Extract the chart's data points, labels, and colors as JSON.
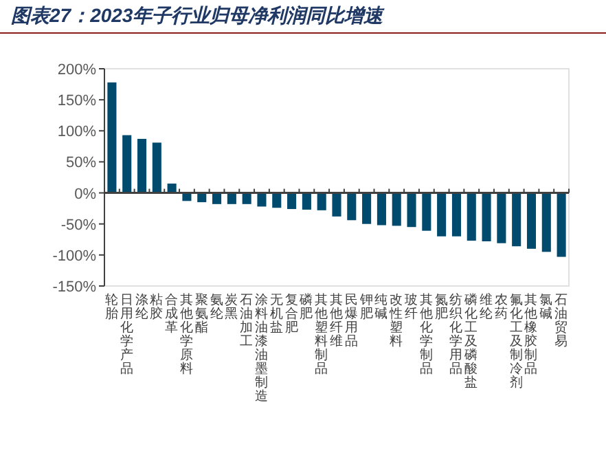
{
  "chart_data": {
    "type": "bar",
    "title": "图表27：2023年子行业归母净利润同比增速",
    "categories": [
      "轮胎",
      "日用化学产品",
      "涤纶",
      "粘胶",
      "合成革",
      "其他化学原料",
      "聚氨酯",
      "氨纶",
      "炭黑",
      "石油加工",
      "涂料油漆油墨制造",
      "无机盐",
      "复合肥",
      "磷肥",
      "其他塑料制品",
      "其他纤维",
      "民爆用品",
      "钾肥",
      "纯碱",
      "改性塑料",
      "玻纤",
      "其他化学制品",
      "氮肥",
      "纺织化学用品",
      "磷化工及磷酸盐",
      "维纶",
      "农药",
      "氟化工及制冷剂",
      "其他橡胶制品",
      "氯碱",
      "石油贸易"
    ],
    "values": [
      178,
      93,
      87,
      81,
      15,
      -13,
      -15,
      -18,
      -18,
      -18,
      -22,
      -24,
      -26,
      -27,
      -28,
      -38,
      -44,
      -50,
      -52,
      -53,
      -55,
      -61,
      -70,
      -70,
      -77,
      -78,
      -81,
      -86,
      -90,
      -95,
      -103
    ],
    "color": "#004a6e",
    "ylim": [
      -150,
      200
    ],
    "yticks": [
      {
        "value": -150,
        "label": "-150%"
      },
      {
        "value": -100,
        "label": "-100%"
      },
      {
        "value": -50,
        "label": "-50%"
      },
      {
        "value": 0,
        "label": "0%"
      },
      {
        "value": 50,
        "label": "50%"
      },
      {
        "value": 100,
        "label": "100%"
      },
      {
        "value": 150,
        "label": "150%"
      },
      {
        "value": 200,
        "label": "200%"
      }
    ]
  }
}
